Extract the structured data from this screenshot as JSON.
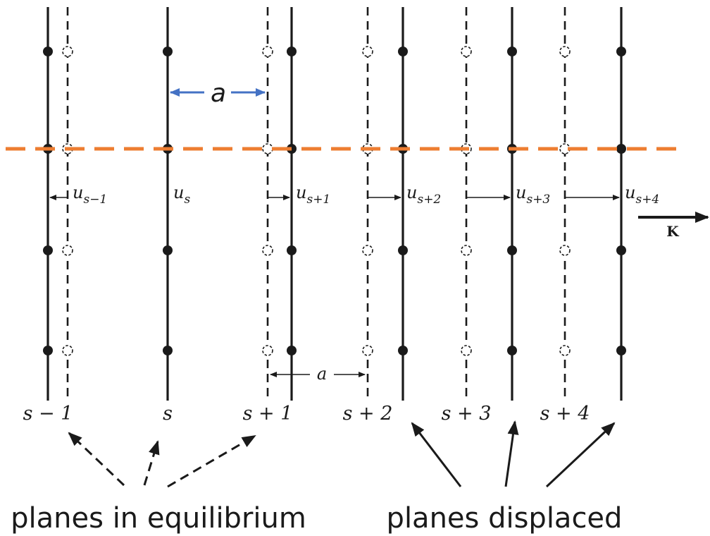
{
  "labels": {
    "lattice_constant_top": "a",
    "lattice_constant_bottom": "a",
    "wavevector": "K",
    "displacements": [
      {
        "base": "u",
        "sub": "s−1"
      },
      {
        "base": "u",
        "sub": "s"
      },
      {
        "base": "u",
        "sub": "s+1"
      },
      {
        "base": "u",
        "sub": "s+2"
      },
      {
        "base": "u",
        "sub": "s+3"
      },
      {
        "base": "u",
        "sub": "s+4"
      }
    ],
    "planes": [
      "s − 1",
      "s",
      "s + 1",
      "s + 2",
      "s + 3",
      "s + 4"
    ]
  },
  "captions": {
    "equilibrium": "planes in equilibrium",
    "displaced": "planes displaced"
  },
  "colors": {
    "ink": "#1a1a1a",
    "wave_line": "#ed7d31",
    "lattice_arrow": "#4472c4"
  }
}
